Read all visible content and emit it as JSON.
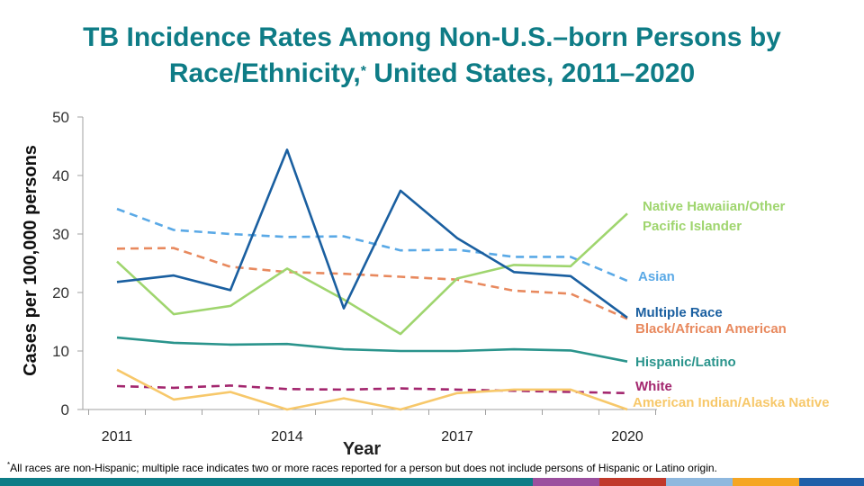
{
  "title": {
    "line1": "TB Incidence Rates Among Non-U.S.–born Persons by",
    "line2_pre": "Race/Ethnicity,",
    "line2_mark": "*",
    "line2_post": " United States, 2011–2020"
  },
  "footnote": {
    "mark": "*",
    "text": "All races are non-Hispanic; multiple race indicates two or more races reported for a person but does not include persons of Hispanic or Latino origin."
  },
  "footer_colors": [
    "#0e7c86",
    "#0e7c86",
    "#0e7c86",
    "#0e7c86",
    "#9b4f9e",
    "#c0392b",
    "#8fb8de",
    "#f5a623",
    "#1f5fa8"
  ],
  "chart_data": {
    "type": "line",
    "title": "TB Incidence Rates Among Non-U.S.–born Persons by Race/Ethnicity, United States, 2011–2020",
    "xlabel": "Year",
    "ylabel": "Cases per 100,000 persons",
    "x": [
      2011,
      2012,
      2013,
      2014,
      2015,
      2016,
      2017,
      2018,
      2019,
      2020
    ],
    "x_tick_labels": [
      "2011",
      "2014",
      "2017",
      "2020"
    ],
    "x_tick_values": [
      2011,
      2014,
      2017,
      2020
    ],
    "ylim": [
      0,
      50
    ],
    "y_ticks": [
      0,
      10,
      20,
      30,
      40,
      50
    ],
    "grid": false,
    "series": [
      {
        "name": "Asian",
        "label_lines": [
          "Asian"
        ],
        "color": "#5aa9e6",
        "dashed": true,
        "values": [
          34.3,
          30.7,
          30.0,
          29.5,
          29.6,
          27.2,
          27.3,
          26.1,
          26.1,
          22.0
        ]
      },
      {
        "name": "Black/African American",
        "label_lines": [
          "Black/African American"
        ],
        "color": "#e8895e",
        "dashed": true,
        "values": [
          27.5,
          27.6,
          24.4,
          23.5,
          23.2,
          22.7,
          22.2,
          20.3,
          19.8,
          15.5
        ]
      },
      {
        "name": "White",
        "label_lines": [
          "White"
        ],
        "color": "#a3266e",
        "dashed": true,
        "values": [
          4.0,
          3.7,
          4.1,
          3.5,
          3.4,
          3.6,
          3.4,
          3.2,
          3.0,
          2.8
        ]
      },
      {
        "name": "Native Hawaiian/Other Pacific Islander",
        "label_lines": [
          "Native Hawaiian/Other",
          "Pacific Islander"
        ],
        "color": "#9fd56e",
        "dashed": false,
        "values": [
          25.3,
          16.3,
          17.7,
          24.1,
          18.8,
          12.9,
          22.4,
          24.7,
          24.5,
          33.5
        ]
      },
      {
        "name": "Multiple Race",
        "label_lines": [
          "Multiple Race"
        ],
        "color": "#1a5fa0",
        "dashed": false,
        "values": [
          21.8,
          22.9,
          20.4,
          44.4,
          17.3,
          37.4,
          29.3,
          23.5,
          22.8,
          15.7
        ]
      },
      {
        "name": "Hispanic/Latino",
        "label_lines": [
          "Hispanic/Latino"
        ],
        "color": "#2a948c",
        "dashed": false,
        "values": [
          12.3,
          11.4,
          11.1,
          11.2,
          10.3,
          10.0,
          10.0,
          10.3,
          10.1,
          8.2
        ]
      },
      {
        "name": "American Indian/Alaska Native",
        "label_lines": [
          "American Indian/Alaska Native"
        ],
        "color": "#f7c86a",
        "dashed": false,
        "values": [
          6.8,
          1.7,
          3.0,
          0.0,
          1.9,
          0.0,
          2.8,
          3.4,
          3.4,
          0.0
        ]
      }
    ]
  }
}
